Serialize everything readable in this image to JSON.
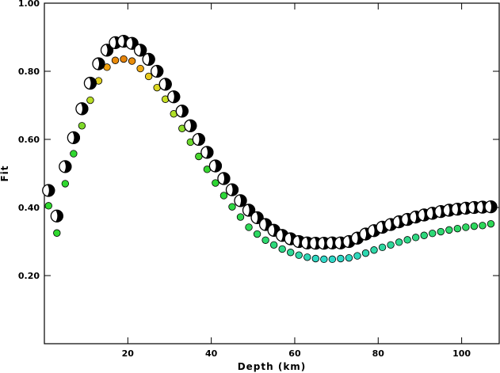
{
  "chart_data": {
    "type": "scatter",
    "xlabel": "Depth (km)",
    "ylabel": "Fit",
    "xlim": [
      0,
      109
    ],
    "ylim": [
      0,
      1.0
    ],
    "x_ticks": [
      20,
      40,
      60,
      80,
      100
    ],
    "x_tick_labels": [
      "20",
      "40",
      "60",
      "80",
      "100"
    ],
    "y_ticks": [
      0.2,
      0.4,
      0.6,
      0.8,
      1.0
    ],
    "y_tick_labels": [
      "0.20",
      "0.40",
      "0.60",
      "0.80",
      "1.00"
    ],
    "grid": false,
    "series": [
      {
        "marker": "focal-mechanism",
        "color": "#000000",
        "x": [
          1,
          3,
          5,
          7,
          9,
          11,
          13,
          15,
          17,
          19,
          21,
          23,
          25,
          27,
          29,
          31,
          33,
          35,
          37,
          39,
          41,
          43,
          45,
          47,
          49,
          51,
          53,
          55,
          57,
          59,
          61,
          63,
          65,
          67,
          69,
          71,
          73,
          75,
          77,
          79,
          81,
          83,
          85,
          87,
          89,
          91,
          93,
          95,
          97,
          99,
          101,
          103,
          105,
          107
        ],
        "y": [
          0.45,
          0.375,
          0.52,
          0.605,
          0.69,
          0.765,
          0.822,
          0.862,
          0.884,
          0.888,
          0.882,
          0.862,
          0.835,
          0.8,
          0.762,
          0.725,
          0.683,
          0.64,
          0.6,
          0.562,
          0.522,
          0.485,
          0.452,
          0.42,
          0.392,
          0.37,
          0.35,
          0.333,
          0.318,
          0.308,
          0.3,
          0.296,
          0.295,
          0.295,
          0.296,
          0.296,
          0.3,
          0.31,
          0.322,
          0.332,
          0.342,
          0.35,
          0.358,
          0.365,
          0.372,
          0.378,
          0.383,
          0.388,
          0.392,
          0.395,
          0.398,
          0.4,
          0.401,
          0.402
        ]
      },
      {
        "marker": "dot",
        "x": [
          1,
          3,
          5,
          7,
          9,
          11,
          13,
          15,
          17,
          19,
          21,
          23,
          25,
          27,
          29,
          31,
          33,
          35,
          37,
          39,
          41,
          43,
          45,
          47,
          49,
          51,
          53,
          55,
          57,
          59,
          61,
          63,
          65,
          67,
          69,
          71,
          73,
          75,
          77,
          79,
          81,
          83,
          85,
          87,
          89,
          91,
          93,
          95,
          97,
          99,
          101,
          103,
          105,
          107
        ],
        "y": [
          0.405,
          0.325,
          0.47,
          0.558,
          0.64,
          0.715,
          0.772,
          0.812,
          0.832,
          0.836,
          0.83,
          0.808,
          0.785,
          0.752,
          0.718,
          0.675,
          0.632,
          0.592,
          0.55,
          0.512,
          0.472,
          0.435,
          0.402,
          0.372,
          0.342,
          0.322,
          0.304,
          0.29,
          0.278,
          0.268,
          0.26,
          0.254,
          0.25,
          0.248,
          0.248,
          0.25,
          0.252,
          0.258,
          0.266,
          0.275,
          0.283,
          0.29,
          0.298,
          0.305,
          0.312,
          0.318,
          0.324,
          0.329,
          0.334,
          0.338,
          0.342,
          0.345,
          0.347,
          0.352
        ],
        "colors": [
          "#2fd82f",
          "#2fd82f",
          "#2fd82f",
          "#2fd82f",
          "#7ed82a",
          "#b9de26",
          "#e0d020",
          "#f0a010",
          "#e88a0a",
          "#e6840a",
          "#e88c0a",
          "#eea812",
          "#e6c81c",
          "#dcd822",
          "#c8e024",
          "#b0e028",
          "#8cdc2a",
          "#6ad82c",
          "#48d62e",
          "#36d630",
          "#2ed634",
          "#2ed83a",
          "#2ed842",
          "#2ed84c",
          "#2ed856",
          "#2ed862",
          "#2ed86e",
          "#2ed87a",
          "#2ed888",
          "#2ed896",
          "#2ed8a6",
          "#2ed8b6",
          "#2ed8c2",
          "#2ed8c8",
          "#2ed8c8",
          "#2ed8c8",
          "#2ed8c2",
          "#2ed8bc",
          "#2ed8b0",
          "#2ed8a8",
          "#2ed8a0",
          "#2ed898",
          "#2ed890",
          "#2ed888",
          "#2ed882",
          "#2ed87c",
          "#2ed876",
          "#2ed870",
          "#2ed86a",
          "#2ed866",
          "#2ed862",
          "#2ed85e",
          "#2ed85a",
          "#2ed856"
        ]
      }
    ]
  }
}
